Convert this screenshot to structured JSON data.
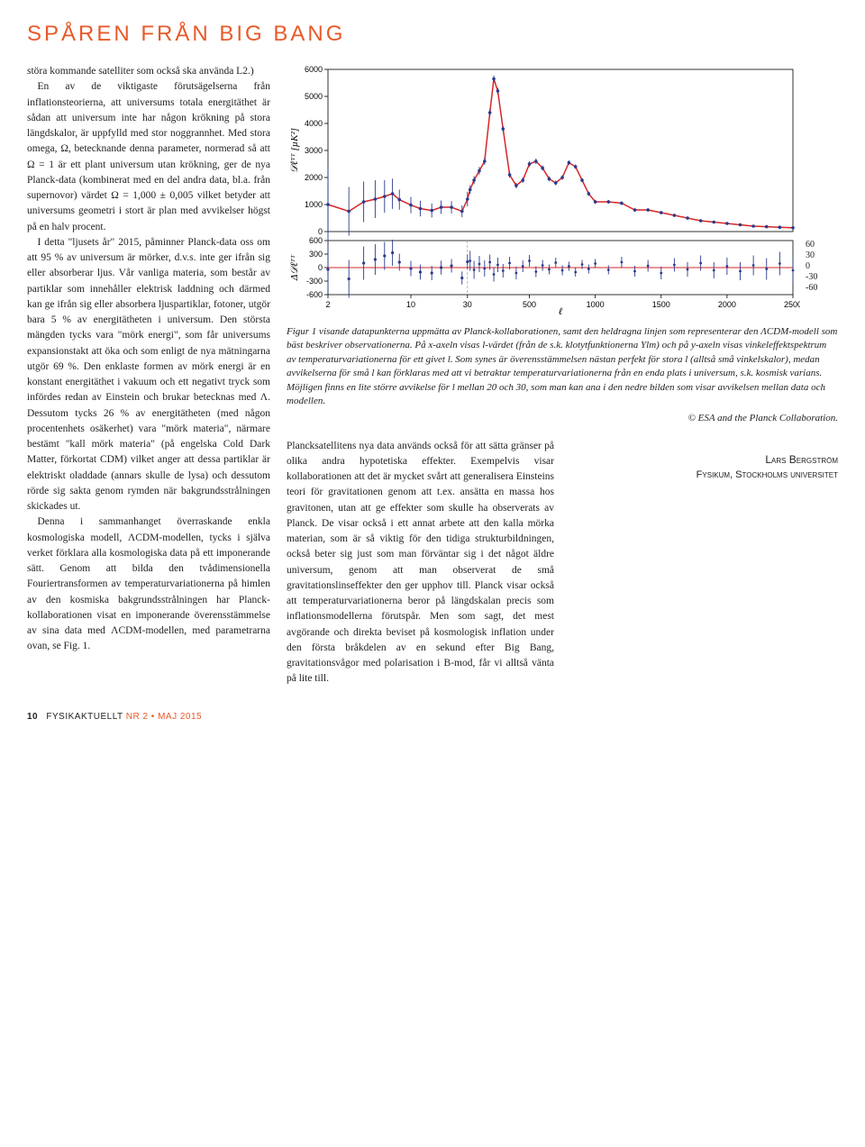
{
  "title": "SPÅREN FRÅN BIG BANG",
  "col1": {
    "p1": "störa kommande satelliter som också ska använda L2.)",
    "p2": "En av de viktigaste förutsägelserna från inflationsteorierna, att universums totala energitäthet är sådan att universum inte har någon krökning på stora längdskalor, är uppfylld med stor noggrannhet. Med stora omega, Ω, betecknande denna parameter, normerad så att Ω = 1 är ett plant universum utan krökning, ger de nya Planck-data (kombinerat med en del andra data, bl.a. från supernovor) värdet Ω = 1,000 ± 0,005 vilket betyder att universums geometri i stort är plan med avvikelser högst på en halv procent.",
    "p3": "I detta \"ljusets år\" 2015, påminner Planck-data oss om att 95 % av universum är mörker, d.v.s. inte ger ifrån sig eller absorberar ljus. Vår vanliga materia, som består av partiklar som innehåller elektrisk laddning och därmed kan ge ifrån sig eller absorbera ljuspartiklar, fotoner, utgör bara 5 % av energitätheten i universum. Den största mängden tycks vara \"mörk energi\", som får universums expansionstakt att öka och som enligt de nya mätningarna utgör 69 %. Den enklaste formen av mörk energi är en konstant energitäthet i vakuum och ett negativt tryck som infördes redan av Einstein och brukar betecknas med Λ. Dessutom tycks 26 % av energitätheten (med någon procentenhets osäkerhet) vara \"mörk materia\", närmare bestämt \"kall mörk materia\" (på engelska Cold Dark Matter, förkortat CDM) vilket anger att dessa partiklar är elektriskt oladdade (annars skulle de lysa) och dessutom rörde sig sakta genom rymden när bakgrundsstrålningen skickades ut.",
    "p4": "Denna i sammanhanget överraskande enkla kosmologiska modell, ΛCDM-modellen, tycks i själva verket förklara alla kosmologiska data på ett imponerande sätt. Genom att bilda den tvådimensionella Fouriertransformen av temperaturvariationerna på himlen av den kosmiska bakgrundsstrålningen har Planck-kollaborationen visat en imponerande överensstämmelse av sina data med ΛCDM-modellen, med parametrarna ovan, se Fig. 1."
  },
  "caption": {
    "text": "Figur 1 visande datapunkterna uppmätta av Planck-kollaborationen, samt den heldragna linjen som representerar den ΛCDM-modell som bäst beskriver observationerna. På x-axeln visas l-värdet (från de s.k. klotytfunktionerna Ylm) och på y-axeln visas vinkeleffektspektrum av temperaturvariationerna för ett givet l. Som synes är överensstämmelsen nästan perfekt för stora l (alltså små vinkelskalor), medan avvikelserna för små l kan förklaras med att vi betraktar temperaturvariationerna från en enda plats i universum, s.k. kosmisk varians. Möjligen finns en lite större avvikelse för l mellan 20 och 30, som man kan ana i den nedre bilden som visar avvikelsen mellan data och modellen.",
    "copyright": "© ESA and the Planck Collaboration."
  },
  "col2": {
    "p1": "Plancksatellitens nya data används också för att sätta gränser på olika andra hypotetiska effekter. Exempelvis visar kollaborationen att det är mycket svårt att generalisera Einsteins teori för gravitationen genom att t.ex. ansätta en massa hos gravitonen, utan att ge effekter som skulle ha observerats av Planck. De visar också i ett annat arbete att den kalla mörka materian, som är så viktig för den tidiga strukturbildningen, också beter sig just som man förväntar sig i det något äldre universum, genom att man observerat de små gravitationslinseffekter den ger upphov till. Planck visar också att temperaturvariationerna beror på längdskalan precis som inflationsmodellerna förutspår. Men som sagt, det mest avgörande och direkta beviset på kosmologisk inflation under den första bråkdelen av en sekund efter Big Bang, gravitationsvågor med polarisation i B-mod, får vi alltså vänta på lite till."
  },
  "author": {
    "name": "Lars Bergström",
    "affil": "Fysikum, Stockholms universitet"
  },
  "footer": {
    "page": "10",
    "pub": "FYSIKAKTUELLT",
    "issue": "NR 2 • MAJ 2015"
  },
  "chart": {
    "top": {
      "ylabel": "𝒟ℓᵀᵀ [µK²]",
      "yticks": [
        0,
        1000,
        2000,
        3000,
        4000,
        5000,
        6000
      ],
      "model_color": "#d62728",
      "point_color": "#2a3a8c",
      "points": [
        [
          2,
          1000,
          1400
        ],
        [
          3,
          750,
          900
        ],
        [
          4,
          1100,
          750
        ],
        [
          5,
          1200,
          700
        ],
        [
          6,
          1300,
          600
        ],
        [
          7,
          1400,
          560
        ],
        [
          8,
          1180,
          370
        ],
        [
          10,
          980,
          300
        ],
        [
          12,
          850,
          290
        ],
        [
          15,
          780,
          260
        ],
        [
          18,
          900,
          250
        ],
        [
          22,
          900,
          230
        ],
        [
          27,
          750,
          220
        ],
        [
          30,
          1200,
          270
        ],
        [
          50,
          1550,
          160
        ],
        [
          80,
          1900,
          150
        ],
        [
          120,
          2250,
          140
        ],
        [
          160,
          2600,
          130
        ],
        [
          200,
          4400,
          130
        ],
        [
          230,
          5650,
          120
        ],
        [
          260,
          5200,
          120
        ],
        [
          300,
          3800,
          110
        ],
        [
          350,
          2100,
          110
        ],
        [
          400,
          1700,
          100
        ],
        [
          450,
          1900,
          100
        ],
        [
          500,
          2500,
          100
        ],
        [
          550,
          2600,
          100
        ],
        [
          600,
          2350,
          95
        ],
        [
          650,
          1950,
          90
        ],
        [
          700,
          1800,
          90
        ],
        [
          750,
          2000,
          85
        ],
        [
          800,
          2550,
          85
        ],
        [
          850,
          2400,
          80
        ],
        [
          900,
          1900,
          80
        ],
        [
          950,
          1400,
          80
        ],
        [
          1000,
          1100,
          75
        ],
        [
          1100,
          1100,
          70
        ],
        [
          1200,
          1050,
          70
        ],
        [
          1300,
          800,
          65
        ],
        [
          1400,
          800,
          65
        ],
        [
          1500,
          700,
          60
        ],
        [
          1600,
          600,
          60
        ],
        [
          1700,
          500,
          55
        ],
        [
          1800,
          400,
          55
        ],
        [
          1900,
          350,
          55
        ],
        [
          2000,
          300,
          50
        ],
        [
          2100,
          250,
          50
        ],
        [
          2200,
          200,
          50
        ],
        [
          2300,
          180,
          50
        ],
        [
          2400,
          160,
          50
        ],
        [
          2500,
          140,
          50
        ]
      ]
    },
    "bottom": {
      "ylabel": "Δ𝒟ℓᵀᵀ",
      "yticks_left": [
        -600,
        -300,
        0,
        300,
        600
      ],
      "yticks_right": [
        -60,
        -30,
        0,
        30,
        60
      ],
      "points_coarse": [
        [
          2,
          -40,
          550
        ],
        [
          3,
          -250,
          420
        ],
        [
          4,
          100,
          370
        ],
        [
          5,
          180,
          340
        ],
        [
          6,
          260,
          310
        ],
        [
          7,
          330,
          290
        ],
        [
          8,
          120,
          190
        ],
        [
          10,
          -20,
          170
        ],
        [
          12,
          -100,
          168
        ],
        [
          15,
          -120,
          160
        ],
        [
          18,
          0,
          155
        ],
        [
          22,
          40,
          150
        ],
        [
          27,
          -230,
          145
        ],
        [
          30,
          130,
          160
        ]
      ],
      "points_fine": [
        [
          50,
          15,
          22
        ],
        [
          80,
          -5,
          20
        ],
        [
          120,
          8,
          18
        ],
        [
          160,
          -2,
          18
        ],
        [
          200,
          12,
          17
        ],
        [
          230,
          -15,
          16
        ],
        [
          260,
          6,
          16
        ],
        [
          300,
          -7,
          15
        ],
        [
          350,
          10,
          14
        ],
        [
          400,
          -12,
          14
        ],
        [
          450,
          3,
          13
        ],
        [
          500,
          15,
          13
        ],
        [
          550,
          -9,
          12
        ],
        [
          600,
          5,
          12
        ],
        [
          650,
          -4,
          11
        ],
        [
          700,
          11,
          11
        ],
        [
          750,
          -6,
          11
        ],
        [
          800,
          3,
          10
        ],
        [
          850,
          -10,
          10
        ],
        [
          900,
          7,
          10
        ],
        [
          950,
          -3,
          10
        ],
        [
          1000,
          9,
          10
        ],
        [
          1100,
          -5,
          10
        ],
        [
          1200,
          12,
          12
        ],
        [
          1300,
          -8,
          12
        ],
        [
          1400,
          4,
          13
        ],
        [
          1500,
          -12,
          14
        ],
        [
          1600,
          6,
          15
        ],
        [
          1700,
          -4,
          16
        ],
        [
          1800,
          10,
          17
        ],
        [
          1900,
          -6,
          18
        ],
        [
          2000,
          3,
          19
        ],
        [
          2100,
          -8,
          20
        ],
        [
          2200,
          5,
          22
        ],
        [
          2300,
          -3,
          24
        ],
        [
          2400,
          9,
          26
        ],
        [
          2500,
          -6,
          28
        ]
      ]
    },
    "xticks": [
      2,
      10,
      30,
      500,
      1000,
      1500,
      2000,
      2500
    ],
    "xlabel": "ℓ"
  }
}
